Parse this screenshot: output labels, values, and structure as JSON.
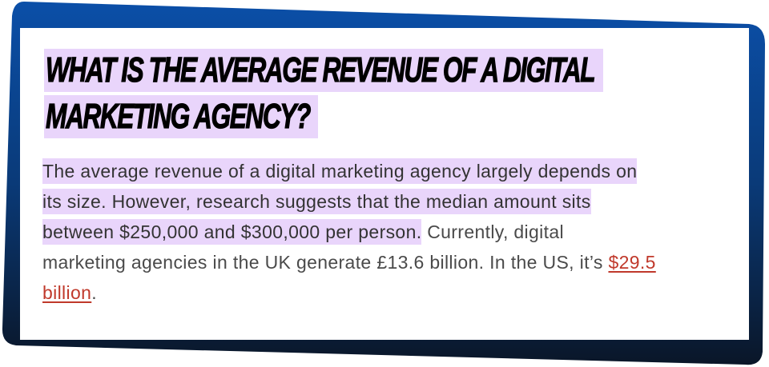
{
  "heading": {
    "lines": [
      "What is the average revenue of a digital",
      "marketing agency?"
    ]
  },
  "paragraph": {
    "line1_hl": "The average revenue of a digital marketing agency largely depends on",
    "line2_hl": "its size. However, research suggests that the median amount sits",
    "line3_hl": "between $250,000 and $300,000 per person.",
    "line3_rest": " Currently, digital",
    "line4_text": "marketing agencies in the UK generate £13.6 billion. In the US, it’s ",
    "line4_link": "$29.5",
    "line5_link": "billion",
    "line5_end": "."
  },
  "colors": {
    "highlight": "#e9d5fb",
    "link": "#c0392b",
    "frame_top": "#0b4fa8",
    "frame_bottom": "#0a1628"
  }
}
